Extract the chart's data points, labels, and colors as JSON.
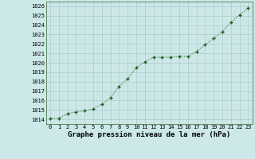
{
  "x": [
    0,
    1,
    2,
    3,
    4,
    5,
    6,
    7,
    8,
    9,
    10,
    11,
    12,
    13,
    14,
    15,
    16,
    17,
    18,
    19,
    20,
    21,
    22,
    23
  ],
  "y": [
    1014.1,
    1014.1,
    1014.6,
    1014.8,
    1014.9,
    1015.1,
    1015.6,
    1016.3,
    1017.5,
    1018.3,
    1019.5,
    1020.1,
    1020.6,
    1020.6,
    1020.6,
    1020.7,
    1020.7,
    1021.2,
    1021.9,
    1022.6,
    1023.3,
    1024.3,
    1025.1,
    1025.8
  ],
  "line_color": "#1a5c1a",
  "marker": "+",
  "marker_size": 3.5,
  "marker_linewidth": 1.0,
  "linewidth": 0.7,
  "background_color": "#cce8e8",
  "grid_major_color": "#aacccc",
  "grid_minor_color": "#ccdddd",
  "xlabel": "Graphe pression niveau de la mer (hPa)",
  "ylim": [
    1013.5,
    1026.5
  ],
  "xlim": [
    -0.5,
    23.5
  ],
  "yticks": [
    1014,
    1015,
    1016,
    1017,
    1018,
    1019,
    1020,
    1021,
    1022,
    1023,
    1024,
    1025,
    1026
  ],
  "xticks": [
    0,
    1,
    2,
    3,
    4,
    5,
    6,
    7,
    8,
    9,
    10,
    11,
    12,
    13,
    14,
    15,
    16,
    17,
    18,
    19,
    20,
    21,
    22,
    23
  ],
  "tick_fontsize": 5,
  "xlabel_fontsize": 6.5,
  "xlabel_bold": true
}
